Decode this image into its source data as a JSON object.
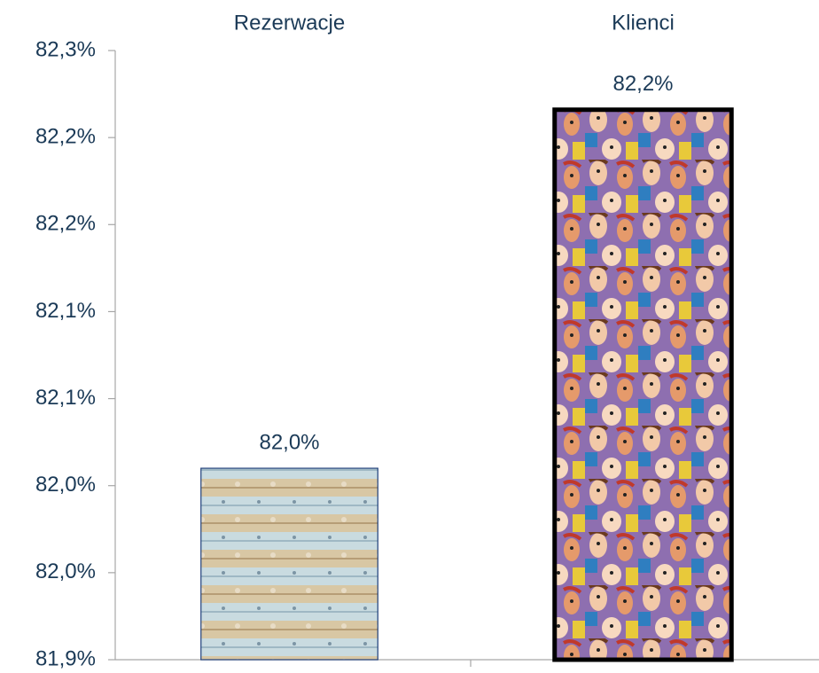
{
  "chart_data": {
    "type": "bar",
    "categories": [
      "Rezerwacje",
      "Klienci"
    ],
    "values": [
      82.01,
      82.216
    ],
    "value_labels": [
      "82,0%",
      "82,2%"
    ],
    "ylim": [
      81.9,
      82.25
    ],
    "yticks": [
      {
        "value": 81.9,
        "label": "81,9%"
      },
      {
        "value": 81.95,
        "label": "82,0%"
      },
      {
        "value": 82.0,
        "label": "82,0%"
      },
      {
        "value": 82.05,
        "label": "82,1%"
      },
      {
        "value": 82.1,
        "label": "82,1%"
      },
      {
        "value": 82.15,
        "label": "82,2%"
      },
      {
        "value": 82.2,
        "label": "82,2%"
      },
      {
        "value": 82.25,
        "label": "82,3%"
      }
    ]
  }
}
